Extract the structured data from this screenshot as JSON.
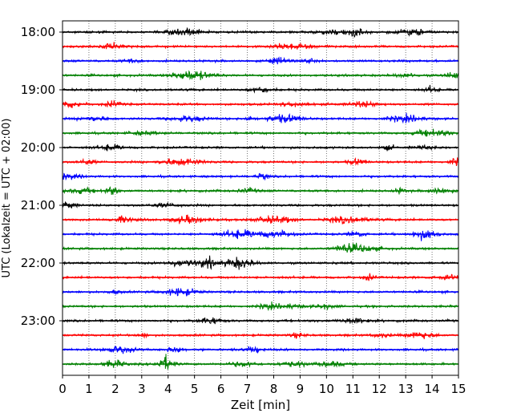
{
  "chart_data": {
    "type": "line",
    "description_of_marks": "helicorder seismogram traces, one per 15-minute block",
    "xlabel": "Zeit  [min]",
    "ylabel": "UTC (Lokalzeit = UTC + 02:00)",
    "xlim": [
      0,
      15
    ],
    "x_ticks": [
      "0",
      "1",
      "2",
      "3",
      "4",
      "5",
      "6",
      "7",
      "8",
      "9",
      "10",
      "11",
      "12",
      "13",
      "14",
      "15"
    ],
    "y_ticks": [
      "18:00",
      "19:00",
      "20:00",
      "21:00",
      "22:00",
      "23:00"
    ],
    "grid": "vertical dotted lines at each minute",
    "trace_colors": [
      "#000000",
      "#ff0000",
      "#0000ff",
      "#008000"
    ],
    "traces": [
      {
        "start": "18:00",
        "color": "#000000"
      },
      {
        "start": "18:15",
        "color": "#ff0000"
      },
      {
        "start": "18:30",
        "color": "#0000ff"
      },
      {
        "start": "18:45",
        "color": "#008000"
      },
      {
        "start": "19:00",
        "color": "#000000"
      },
      {
        "start": "19:15",
        "color": "#ff0000"
      },
      {
        "start": "19:30",
        "color": "#0000ff"
      },
      {
        "start": "19:45",
        "color": "#008000"
      },
      {
        "start": "20:00",
        "color": "#000000"
      },
      {
        "start": "20:15",
        "color": "#ff0000"
      },
      {
        "start": "20:30",
        "color": "#0000ff"
      },
      {
        "start": "20:45",
        "color": "#008000"
      },
      {
        "start": "21:00",
        "color": "#000000"
      },
      {
        "start": "21:15",
        "color": "#ff0000"
      },
      {
        "start": "21:30",
        "color": "#0000ff"
      },
      {
        "start": "21:45",
        "color": "#008000"
      },
      {
        "start": "22:00",
        "color": "#000000"
      },
      {
        "start": "22:15",
        "color": "#ff0000"
      },
      {
        "start": "22:30",
        "color": "#0000ff"
      },
      {
        "start": "22:45",
        "color": "#008000"
      },
      {
        "start": "23:00",
        "color": "#000000"
      },
      {
        "start": "23:15",
        "color": "#ff0000"
      },
      {
        "start": "23:30",
        "color": "#0000ff"
      },
      {
        "start": "23:45",
        "color": "#008000"
      }
    ]
  }
}
